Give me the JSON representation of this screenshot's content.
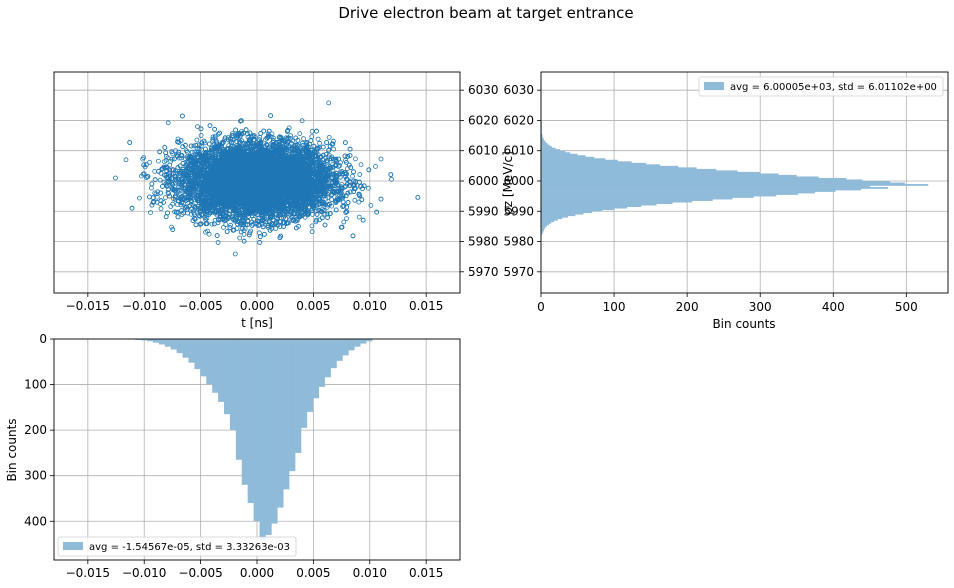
{
  "figure": {
    "title": "Drive electron beam at target entrance"
  },
  "chart_data": [
    {
      "id": "scatter",
      "type": "scatter",
      "xlabel": "t [ns]",
      "ylabel": "",
      "xlim": [
        -0.018,
        0.018
      ],
      "ylim": [
        5963,
        6036
      ],
      "xticks": [
        -0.015,
        -0.01,
        -0.005,
        0.0,
        0.005,
        0.01,
        0.015
      ],
      "yticks": [
        5970,
        5980,
        5990,
        6000,
        6010,
        6020,
        6030
      ],
      "xtick_labels": [
        "−0.015",
        "−0.010",
        "−0.005",
        "0.000",
        "0.005",
        "0.010",
        "0.015"
      ],
      "ytick_labels": [
        "5970",
        "5980",
        "5990",
        "6000",
        "6010",
        "6020",
        "6030"
      ],
      "y_axis_side": "right",
      "grid": true,
      "marker": "open-circle",
      "color": "#1f77b4",
      "distribution": {
        "t_mean": -1.54567e-05,
        "t_std": 0.00333263,
        "pz_mean": 6000.05,
        "pz_std": 6.01102
      },
      "n_points_shown": 10000
    },
    {
      "id": "pz-histogram",
      "type": "bar",
      "orientation": "horizontal",
      "xlabel": "Bin counts",
      "ylabel": "pz [MeV/c]",
      "xlim": [
        0,
        557
      ],
      "ylim": [
        5963,
        6036
      ],
      "xticks": [
        0,
        100,
        200,
        300,
        400,
        500
      ],
      "yticks": [
        5970,
        5980,
        5990,
        6000,
        6010,
        6020,
        6030
      ],
      "xtick_labels": [
        "0",
        "100",
        "200",
        "300",
        "400",
        "500"
      ],
      "ytick_labels": [
        "5970",
        "5980",
        "5990",
        "6000",
        "6010",
        "6020",
        "6030"
      ],
      "grid": true,
      "color": "#8fbbd9",
      "legend": {
        "label": "avg = 6.00005e+03, std = 6.01102e+00",
        "placement": "upper right"
      },
      "bin_edges": [
        5982,
        6020
      ],
      "bin_count": 76,
      "counts": [
        1,
        2,
        3,
        4,
        5,
        6,
        8,
        11,
        14,
        18,
        23,
        29,
        37,
        47,
        58,
        70,
        84,
        100,
        118,
        137,
        158,
        180,
        207,
        235,
        262,
        291,
        322,
        352,
        375,
        403,
        438,
        475,
        450,
        530,
        498,
        478,
        440,
        418,
        380,
        350,
        325,
        300,
        269,
        240,
        213,
        188,
        163,
        144,
        124,
        105,
        88,
        73,
        61,
        50,
        40,
        33,
        26,
        20,
        15,
        12,
        9,
        7,
        5,
        4,
        3,
        2,
        2,
        1,
        1,
        1,
        1,
        1,
        1,
        1,
        1,
        1
      ]
    },
    {
      "id": "t-histogram",
      "type": "bar",
      "orientation": "vertical-inverted",
      "xlabel": "",
      "ylabel": "Bin counts",
      "xlim": [
        -0.018,
        0.018
      ],
      "ylim": [
        485,
        0
      ],
      "xticks": [
        -0.015,
        -0.01,
        -0.005,
        0.0,
        0.005,
        0.01,
        0.015
      ],
      "yticks": [
        0,
        100,
        200,
        300,
        400
      ],
      "xtick_labels": [
        "−0.015",
        "−0.010",
        "−0.005",
        "0.000",
        "0.005",
        "0.010",
        "0.015"
      ],
      "ytick_labels": [
        "0",
        "100",
        "200",
        "300",
        "400"
      ],
      "grid": true,
      "color": "#8fbbd9",
      "legend": {
        "label": "avg = -1.54567e-05, std = 3.33263e-03",
        "placement": "lower left"
      },
      "bin_edges": [
        -0.0108,
        0.0102
      ],
      "bin_count": 40,
      "counts": [
        2,
        3,
        5,
        8,
        12,
        17,
        23,
        31,
        41,
        52,
        66,
        82,
        99,
        118,
        138,
        165,
        200,
        265,
        320,
        360,
        400,
        440,
        430,
        405,
        370,
        330,
        290,
        250,
        195,
        160,
        130,
        105,
        84,
        64,
        48,
        36,
        25,
        17,
        10,
        5
      ]
    }
  ]
}
